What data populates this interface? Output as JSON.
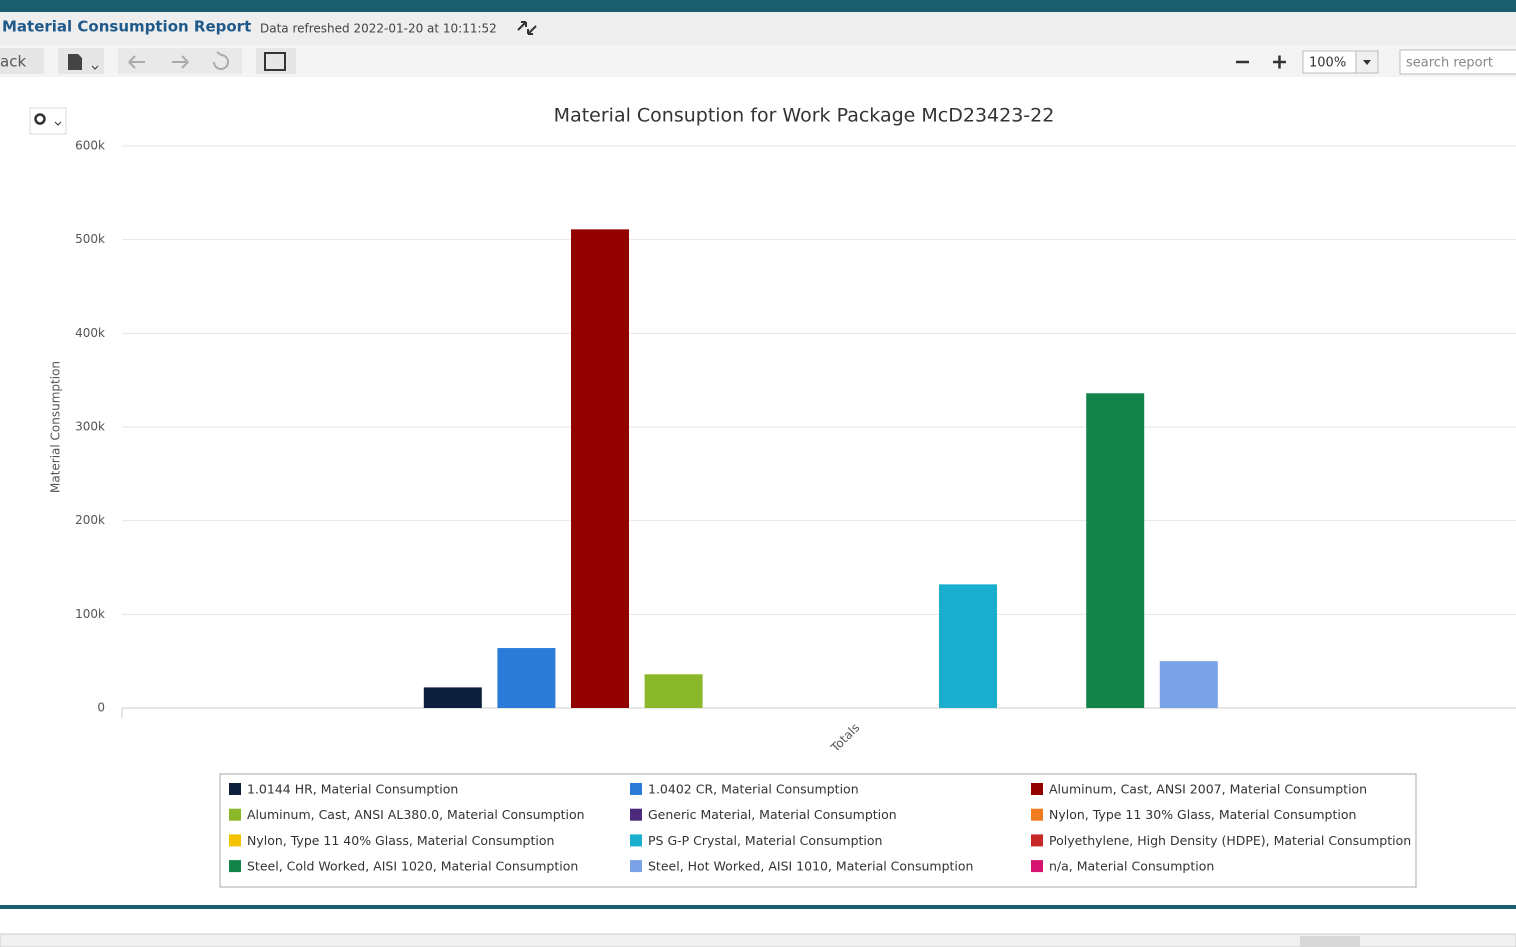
{
  "header": {
    "title": "Material Consumption Report",
    "refreshed": "Data refreshed 2022-01-20 at 10:11:52"
  },
  "toolbar": {
    "back": "ack",
    "zoom": "100%",
    "search_placeholder": "search report"
  },
  "chart_data": {
    "type": "bar",
    "title": "Material Consuption for Work Package McD23423-22",
    "ylabel": "Material Consumption",
    "categories": [
      "Totals"
    ],
    "ylim": [
      0,
      600000
    ],
    "yticks": [
      0,
      {
        "value": 100000,
        "label": "100k"
      },
      {
        "value": 200000,
        "label": "200k"
      },
      {
        "value": 300000,
        "label": "300k"
      },
      {
        "value": 400000,
        "label": "400k"
      },
      {
        "value": 500000,
        "label": "500k"
      },
      {
        "value": 600000,
        "label": "600k"
      }
    ],
    "grid": true,
    "series": [
      {
        "name": "1.0144 HR, Material Consumption",
        "color": "#0d1f3c",
        "values": [
          22000
        ]
      },
      {
        "name": "1.0402 CR, Material Consumption",
        "color": "#2b7bd8",
        "values": [
          64000
        ]
      },
      {
        "name": "Aluminum, Cast, ANSI 2007, Material Consumption",
        "color": "#920000",
        "values": [
          511000
        ]
      },
      {
        "name": "Aluminum, Cast, ANSI AL380.0, Material Consumption",
        "color": "#8ab82a",
        "values": [
          36000
        ]
      },
      {
        "name": "Generic Material, Material Consumption",
        "color": "#4b2a7a",
        "values": [
          0
        ]
      },
      {
        "name": "Nylon, Type 11 30% Glass, Material Consumption",
        "color": "#f07c22",
        "values": [
          0
        ]
      },
      {
        "name": "Nylon, Type 11 40% Glass, Material Consumption",
        "color": "#f5c200",
        "values": [
          0
        ]
      },
      {
        "name": "PS G-P Crystal, Material Consumption",
        "color": "#1aafcf",
        "values": [
          132000
        ]
      },
      {
        "name": "Polyethylene, High Density (HDPE), Material Consumption",
        "color": "#c62828",
        "values": [
          0
        ]
      },
      {
        "name": "Steel, Cold Worked, AISI 1020, Material Consumption",
        "color": "#138449",
        "values": [
          336000
        ]
      },
      {
        "name": "Steel, Hot Worked, AISI 1010, Material Consumption",
        "color": "#7aa2e6",
        "values": [
          50000
        ]
      },
      {
        "name": "n/a, Material Consumption",
        "color": "#d4146e",
        "values": [
          0
        ]
      }
    ]
  }
}
